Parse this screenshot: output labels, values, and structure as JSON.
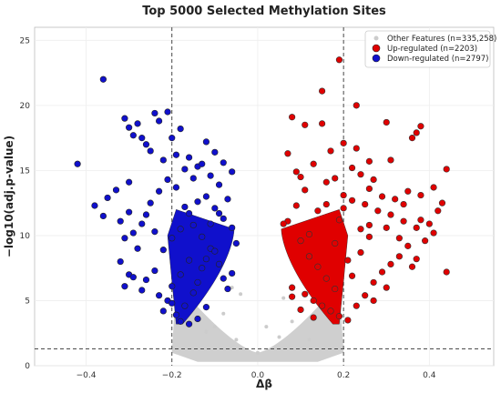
{
  "chart_data": {
    "type": "scatter",
    "title": "Top 5000 Selected Methylation Sites",
    "xlabel": "Δβ",
    "ylabel": "−log10(adj.p-value)",
    "xlim": [
      -0.52,
      0.55
    ],
    "ylim": [
      0,
      26
    ],
    "x_ticks": [
      -0.4,
      -0.2,
      0.0,
      0.2,
      0.4
    ],
    "x_tick_labels": [
      "−0.4",
      "−0.2",
      "0.0",
      "0.2",
      "0.4"
    ],
    "y_ticks": [
      0,
      5,
      10,
      15,
      20,
      25
    ],
    "y_tick_labels": [
      "0",
      "5",
      "10",
      "15",
      "20",
      "25"
    ],
    "thresholds": {
      "delta_beta": [
        -0.2,
        0.2
      ],
      "neg_log10_p": 1.3
    },
    "grid": true,
    "legend_position": "top-right",
    "colors": {
      "other": "#cccccc",
      "up": "#e00000",
      "down": "#1010cc",
      "threshold_line": "#333333"
    },
    "series": [
      {
        "name": "Other Features (n=335,258)",
        "role": "other",
        "points": [
          [
            -0.1,
            3.0
          ],
          [
            -0.05,
            2.0
          ],
          [
            0.0,
            1.0
          ],
          [
            0.05,
            2.2
          ],
          [
            0.08,
            3.4
          ],
          [
            -0.08,
            4.0
          ],
          [
            0.06,
            5.2
          ],
          [
            -0.06,
            6.0
          ],
          [
            -0.04,
            5.5
          ],
          [
            0.02,
            3.0
          ],
          [
            -0.12,
            2.6
          ],
          [
            0.12,
            2.0
          ]
        ]
      },
      {
        "name": "Up-regulated (n=2203)",
        "role": "up",
        "points": [
          [
            0.19,
            23.5
          ],
          [
            0.23,
            20.0
          ],
          [
            0.15,
            21.1
          ],
          [
            0.08,
            19.1
          ],
          [
            0.11,
            18.5
          ],
          [
            0.15,
            18.6
          ],
          [
            0.38,
            18.4
          ],
          [
            0.3,
            18.7
          ],
          [
            0.37,
            17.9
          ],
          [
            0.36,
            17.5
          ],
          [
            0.2,
            17.1
          ],
          [
            0.23,
            16.7
          ],
          [
            0.17,
            16.5
          ],
          [
            0.07,
            16.3
          ],
          [
            0.13,
            15.5
          ],
          [
            0.26,
            15.7
          ],
          [
            0.31,
            15.8
          ],
          [
            0.44,
            15.1
          ],
          [
            0.09,
            14.9
          ],
          [
            0.1,
            14.5
          ],
          [
            0.18,
            14.4
          ],
          [
            0.24,
            14.7
          ],
          [
            0.27,
            14.3
          ],
          [
            0.35,
            13.4
          ],
          [
            0.41,
            13.7
          ],
          [
            0.38,
            13.1
          ],
          [
            0.29,
            13.0
          ],
          [
            0.43,
            12.5
          ],
          [
            0.34,
            12.4
          ],
          [
            0.38,
            11.2
          ],
          [
            0.31,
            11.6
          ],
          [
            0.26,
            10.8
          ],
          [
            0.07,
            11.1
          ],
          [
            0.1,
            9.6
          ],
          [
            0.12,
            8.4
          ],
          [
            0.14,
            7.6
          ],
          [
            0.16,
            6.7
          ],
          [
            0.08,
            6.0
          ],
          [
            0.11,
            5.5
          ],
          [
            0.13,
            5.0
          ],
          [
            0.17,
            4.2
          ],
          [
            0.19,
            3.8
          ],
          [
            0.21,
            3.5
          ],
          [
            0.23,
            4.6
          ],
          [
            0.25,
            5.4
          ],
          [
            0.27,
            6.4
          ],
          [
            0.29,
            7.2
          ],
          [
            0.31,
            7.8
          ],
          [
            0.33,
            8.4
          ],
          [
            0.35,
            9.2
          ],
          [
            0.37,
            8.2
          ],
          [
            0.39,
            9.6
          ],
          [
            0.41,
            10.2
          ],
          [
            0.44,
            7.2
          ],
          [
            0.36,
            7.6
          ],
          [
            0.33,
            9.8
          ],
          [
            0.3,
            10.6
          ],
          [
            0.28,
            11.9
          ],
          [
            0.25,
            12.4
          ],
          [
            0.22,
            12.7
          ],
          [
            0.2,
            13.1
          ],
          [
            0.16,
            12.4
          ],
          [
            0.14,
            11.9
          ],
          [
            0.09,
            12.3
          ],
          [
            0.06,
            10.9
          ],
          [
            0.12,
            10.1
          ],
          [
            0.18,
            9.4
          ],
          [
            0.24,
            8.7
          ],
          [
            0.26,
            9.9
          ],
          [
            0.32,
            12.8
          ],
          [
            0.34,
            11.1
          ],
          [
            0.4,
            10.9
          ],
          [
            0.42,
            11.9
          ],
          [
            0.3,
            6.0
          ],
          [
            0.27,
            5.0
          ],
          [
            0.22,
            6.9
          ],
          [
            0.18,
            5.9
          ],
          [
            0.15,
            4.6
          ],
          [
            0.1,
            4.3
          ],
          [
            0.13,
            3.7
          ],
          [
            0.08,
            5.3
          ],
          [
            0.21,
            8.1
          ],
          [
            0.24,
            10.5
          ],
          [
            0.19,
            11.2
          ],
          [
            0.11,
            13.5
          ],
          [
            0.16,
            14.1
          ],
          [
            0.22,
            15.2
          ],
          [
            0.2,
            12.1
          ],
          [
            0.26,
            13.6
          ],
          [
            0.37,
            10.6
          ]
        ]
      },
      {
        "name": "Down-regulated (n=2797)",
        "role": "down",
        "points": [
          [
            -0.36,
            22.0
          ],
          [
            -0.21,
            19.5
          ],
          [
            -0.23,
            18.8
          ],
          [
            -0.24,
            19.4
          ],
          [
            -0.31,
            19.0
          ],
          [
            -0.29,
            17.7
          ],
          [
            -0.27,
            17.5
          ],
          [
            -0.26,
            17.0
          ],
          [
            -0.3,
            18.3
          ],
          [
            -0.28,
            18.6
          ],
          [
            -0.2,
            17.5
          ],
          [
            -0.18,
            18.2
          ],
          [
            -0.25,
            16.5
          ],
          [
            -0.42,
            15.5
          ],
          [
            -0.22,
            15.8
          ],
          [
            -0.16,
            16.0
          ],
          [
            -0.14,
            15.3
          ],
          [
            -0.33,
            13.5
          ],
          [
            -0.3,
            14.1
          ],
          [
            -0.38,
            12.3
          ],
          [
            -0.35,
            12.9
          ],
          [
            -0.36,
            11.5
          ],
          [
            -0.3,
            11.8
          ],
          [
            -0.32,
            11.1
          ],
          [
            -0.29,
            10.2
          ],
          [
            -0.31,
            9.8
          ],
          [
            -0.27,
            10.9
          ],
          [
            -0.28,
            9.0
          ],
          [
            -0.32,
            8.0
          ],
          [
            -0.3,
            7.0
          ],
          [
            -0.31,
            6.1
          ],
          [
            -0.29,
            6.8
          ],
          [
            -0.27,
            5.8
          ],
          [
            -0.26,
            6.6
          ],
          [
            -0.24,
            7.3
          ],
          [
            -0.23,
            5.4
          ],
          [
            -0.22,
            4.2
          ],
          [
            -0.21,
            5.0
          ],
          [
            -0.2,
            4.8
          ],
          [
            -0.19,
            3.9
          ],
          [
            -0.18,
            3.4
          ],
          [
            -0.17,
            4.6
          ],
          [
            -0.16,
            3.2
          ],
          [
            -0.15,
            5.6
          ],
          [
            -0.14,
            6.4
          ],
          [
            -0.13,
            7.5
          ],
          [
            -0.12,
            8.2
          ],
          [
            -0.11,
            9.0
          ],
          [
            -0.1,
            8.8
          ],
          [
            -0.09,
            7.8
          ],
          [
            -0.08,
            6.7
          ],
          [
            -0.07,
            5.9
          ],
          [
            -0.06,
            7.1
          ],
          [
            -0.05,
            9.4
          ],
          [
            -0.06,
            10.6
          ],
          [
            -0.08,
            11.3
          ],
          [
            -0.1,
            12.1
          ],
          [
            -0.12,
            13.0
          ],
          [
            -0.14,
            12.6
          ],
          [
            -0.16,
            11.7
          ],
          [
            -0.18,
            10.5
          ],
          [
            -0.2,
            9.8
          ],
          [
            -0.22,
            8.9
          ],
          [
            -0.24,
            10.3
          ],
          [
            -0.26,
            11.6
          ],
          [
            -0.25,
            12.5
          ],
          [
            -0.23,
            13.4
          ],
          [
            -0.21,
            14.3
          ],
          [
            -0.19,
            13.7
          ],
          [
            -0.17,
            12.2
          ],
          [
            -0.15,
            10.8
          ],
          [
            -0.13,
            9.9
          ],
          [
            -0.11,
            10.9
          ],
          [
            -0.09,
            11.7
          ],
          [
            -0.07,
            12.8
          ],
          [
            -0.09,
            13.9
          ],
          [
            -0.11,
            14.6
          ],
          [
            -0.13,
            15.5
          ],
          [
            -0.15,
            14.4
          ],
          [
            -0.17,
            15.1
          ],
          [
            -0.19,
            16.2
          ],
          [
            -0.1,
            16.4
          ],
          [
            -0.08,
            15.6
          ],
          [
            -0.12,
            17.2
          ],
          [
            -0.06,
            14.9
          ],
          [
            -0.2,
            6.1
          ],
          [
            -0.18,
            7.0
          ],
          [
            -0.16,
            8.1
          ],
          [
            -0.14,
            3.6
          ],
          [
            -0.12,
            4.5
          ]
        ]
      }
    ]
  }
}
